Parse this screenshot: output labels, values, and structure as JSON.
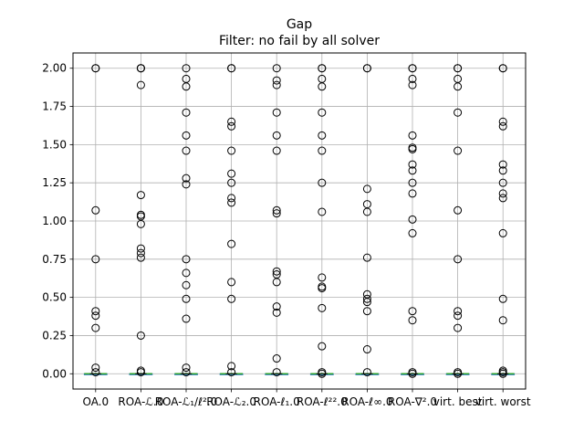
{
  "chart_data": {
    "type": "boxplot",
    "title": "Gap",
    "subtitle": "Filter: no fail by all solver",
    "xlabel": "",
    "ylabel": "",
    "ylim": [
      -0.1,
      2.1
    ],
    "yticks": [
      "0.00",
      "0.25",
      "0.50",
      "0.75",
      "1.00",
      "1.25",
      "1.50",
      "1.75",
      "2.00"
    ],
    "grid": true,
    "categories": [
      "OA.0",
      "ROA-ℒ.0",
      "ROA-ℒ₁/ℓ².0",
      "ROA-ℒ₂.0",
      "ROA-ℓ₁.0",
      "ROA-ℓ²².0",
      "ROA-ℓ∞.0",
      "ROA-∇².0",
      "virt. best",
      "virt. worst"
    ],
    "series": [
      {
        "median": 0.0,
        "q1": 0.0,
        "q3": 0.0,
        "outliers": [
          2.0,
          2.0,
          1.07,
          0.75,
          0.41,
          0.38,
          0.3,
          0.04,
          0.01
        ]
      },
      {
        "median": 0.0,
        "q1": 0.0,
        "q3": 0.0,
        "outliers": [
          2.0,
          2.0,
          2.0,
          1.89,
          1.17,
          1.04,
          1.03,
          0.98,
          0.82,
          0.79,
          0.76,
          0.25,
          0.02,
          0.01
        ]
      },
      {
        "median": 0.0,
        "q1": 0.0,
        "q3": 0.0,
        "outliers": [
          2.0,
          1.93,
          1.88,
          1.71,
          1.56,
          1.46,
          1.28,
          1.24,
          0.75,
          0.66,
          0.58,
          0.49,
          0.36,
          0.04,
          0.01
        ]
      },
      {
        "median": 0.0,
        "q1": 0.0,
        "q3": 0.0,
        "outliers": [
          2.0,
          2.0,
          1.65,
          1.62,
          1.46,
          1.31,
          1.25,
          1.15,
          1.12,
          0.85,
          0.6,
          0.49,
          0.05,
          0.01
        ]
      },
      {
        "median": 0.0,
        "q1": 0.0,
        "q3": 0.0,
        "outliers": [
          2.0,
          1.92,
          1.89,
          1.71,
          1.56,
          1.46,
          1.07,
          1.05,
          0.67,
          0.65,
          0.6,
          0.44,
          0.4,
          0.1,
          0.01
        ]
      },
      {
        "median": 0.0,
        "q1": 0.0,
        "q3": 0.0,
        "outliers": [
          2.0,
          2.0,
          1.93,
          1.88,
          1.71,
          1.56,
          1.46,
          1.25,
          1.06,
          0.63,
          0.57,
          0.56,
          0.43,
          0.18,
          0.01,
          0.0
        ]
      },
      {
        "median": 0.0,
        "q1": 0.0,
        "q3": 0.0,
        "outliers": [
          2.0,
          2.0,
          1.21,
          1.11,
          1.06,
          0.76,
          0.52,
          0.49,
          0.47,
          0.41,
          0.16,
          0.01
        ]
      },
      {
        "median": 0.0,
        "q1": 0.0,
        "q3": 0.0,
        "outliers": [
          2.0,
          2.0,
          1.93,
          1.89,
          1.56,
          1.48,
          1.47,
          1.37,
          1.33,
          1.25,
          1.18,
          1.01,
          0.92,
          0.41,
          0.35,
          0.01,
          0.0
        ]
      },
      {
        "median": 0.0,
        "q1": 0.0,
        "q3": 0.0,
        "outliers": [
          2.0,
          2.0,
          1.93,
          1.88,
          1.71,
          1.46,
          1.07,
          0.75,
          0.41,
          0.38,
          0.3,
          0.01,
          0.0
        ]
      },
      {
        "median": 0.0,
        "q1": 0.0,
        "q3": 0.0,
        "outliers": [
          2.0,
          2.0,
          1.65,
          1.62,
          1.37,
          1.33,
          1.25,
          1.18,
          1.15,
          0.92,
          0.49,
          0.35,
          0.02,
          0.01,
          0.0
        ]
      }
    ]
  }
}
